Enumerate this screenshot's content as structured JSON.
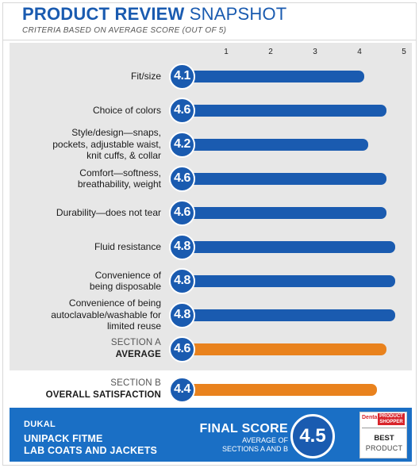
{
  "header": {
    "title_bold": "PRODUCT REVIEW",
    "title_light": "SNAPSHOT",
    "subtitle": "CRITERIA BASED ON AVERAGE SCORE (OUT OF 5)"
  },
  "colors": {
    "blue": "#1a5bb0",
    "orange": "#e9821d",
    "footer": "#1a6fc5",
    "panel": "#e7e7e7"
  },
  "chart_data": {
    "type": "bar",
    "orientation": "horizontal",
    "title": "PRODUCT REVIEW SNAPSHOT",
    "subtitle": "CRITERIA BASED ON AVERAGE SCORE (OUT OF 5)",
    "xlim": [
      0,
      5
    ],
    "xticks": [
      "1",
      "2",
      "3",
      "4",
      "5"
    ],
    "categories": [
      "Fit/size",
      "Choice of colors",
      "Style/design—snaps, pockets, adjustable waist, knit cuffs, & collar",
      "Comfort—softness, breathability, weight",
      "Durability—does not tear",
      "Fluid resistance",
      "Convenience of being disposable",
      "Convenience of being autoclavable/washable for limited reuse",
      "SECTION A AVERAGE",
      "SECTION B OVERALL SATISFACTION"
    ],
    "values": [
      4.1,
      4.6,
      4.2,
      4.6,
      4.6,
      4.8,
      4.8,
      4.8,
      4.6,
      4.4
    ],
    "value_labels": [
      "4.1",
      "4.6",
      "4.2",
      "4.6",
      "4.6",
      "4.8",
      "4.8",
      "4.8",
      "4.6",
      "4.4"
    ],
    "bar_colors": [
      "blue",
      "blue",
      "blue",
      "blue",
      "blue",
      "blue",
      "blue",
      "blue",
      "orange",
      "orange"
    ]
  },
  "rows": [
    {
      "lines": [
        "Fit/size"
      ]
    },
    {
      "lines": [
        "Choice of colors"
      ]
    },
    {
      "lines": [
        "Style/design—snaps,",
        "pockets, adjustable waist,",
        "knit cuffs, & collar"
      ]
    },
    {
      "lines": [
        "Comfort—softness,",
        "breathability, weight"
      ]
    },
    {
      "lines": [
        "Durability—does not tear"
      ]
    },
    {
      "lines": [
        "Fluid resistance"
      ]
    },
    {
      "lines": [
        "Convenience of",
        "being disposable"
      ]
    },
    {
      "lines": [
        "Convenience of being",
        "autoclavable/washable for",
        "limited reuse"
      ]
    }
  ],
  "section_a": {
    "line1": "SECTION A",
    "line2": "AVERAGE"
  },
  "section_b": {
    "line1": "SECTION B",
    "line2": "OVERALL SATISFACTION"
  },
  "footer": {
    "brand": "DUKAL",
    "product_line1": "UNIPACK FITME",
    "product_line2": "LAB COATS AND JACKETS",
    "final_title": "FINAL SCORE",
    "final_sub1": "AVERAGE OF",
    "final_sub2": "SECTIONS A AND B",
    "final_score": "4.5"
  },
  "logo": {
    "dental": "Dental",
    "shopper": "PRODUCT SHOPPER",
    "best": "BEST",
    "product": "PRODUCT"
  }
}
